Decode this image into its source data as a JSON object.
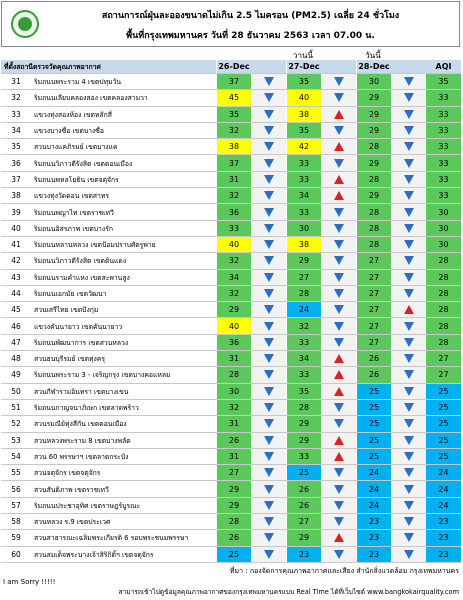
{
  "header": {
    "title": "สถานการณ์ฝุ่นละอองขนาดไม่เกิน 2.5 ไมครอน (PM2.5) เฉลี่ย 24 ชั่วโมง",
    "subtitle": "พื้นที่กรุงเทพมหานคร วันที่ 28 ธันวาคม 2563 เวลา 07.00 น.",
    "yesterday": "วานนี้",
    "today": "วันนี้"
  },
  "table": {
    "columns": [
      "ที่ตั้งสถานีตรวจวัดคุณภาพอากาศ",
      "26-Dec",
      "27-Dec",
      "28-Dec",
      "AQI"
    ],
    "value_color_scale": [
      {
        "upto": 25,
        "color": "#00b0f0"
      },
      {
        "upto": 37,
        "color": "#5cc85c"
      },
      {
        "upto": 50,
        "color": "#ffff00"
      }
    ],
    "aqi_color_scale": [
      {
        "upto": 25,
        "color": "#00b0f0"
      },
      {
        "upto": 50,
        "color": "#5cc85c"
      }
    ],
    "arrow_colors": {
      "up": "#e02020",
      "down": "#2a6fc0"
    },
    "rows": [
      {
        "no": 31,
        "station": "ริมถนนพระราม 4 เขตปทุมวัน",
        "values": [
          37,
          35,
          30
        ],
        "trend": [
          "down",
          "down",
          "down"
        ],
        "aqi": 35
      },
      {
        "no": 32,
        "station": "ริมถนนเลียบคลองสอง เขตคลองสามวา",
        "values": [
          45,
          40,
          29
        ],
        "trend": [
          "down",
          "down",
          "down"
        ],
        "aqi": 33
      },
      {
        "no": 33,
        "station": "แขวงทุ่งสองห้อง เขตหลักสี่",
        "values": [
          35,
          38,
          29
        ],
        "trend": [
          "down",
          "up",
          "down"
        ],
        "aqi": 33
      },
      {
        "no": 34,
        "station": "แขวงบางซื่อ เขตบางซื่อ",
        "values": [
          32,
          35,
          29
        ],
        "trend": [
          "down",
          "down",
          "down"
        ],
        "aqi": 33
      },
      {
        "no": 35,
        "station": "สวนบางแคภิรมย์ เขตบางแค",
        "values": [
          38,
          42,
          28
        ],
        "trend": [
          "down",
          "up",
          "down"
        ],
        "aqi": 33
      },
      {
        "no": 36,
        "station": "ริมถนนวิภาวดีรังสิต เขตดอนเมือง",
        "values": [
          37,
          33,
          29
        ],
        "trend": [
          "down",
          "down",
          "down"
        ],
        "aqi": 33
      },
      {
        "no": 37,
        "station": "ริมถนนพหลโยธิน เขตจตุจักร",
        "values": [
          31,
          33,
          28
        ],
        "trend": [
          "down",
          "up",
          "down"
        ],
        "aqi": 33
      },
      {
        "no": 38,
        "station": "แขวงทุ่งวัดดอน เขตสาทร",
        "values": [
          32,
          34,
          29
        ],
        "trend": [
          "down",
          "up",
          "down"
        ],
        "aqi": 33
      },
      {
        "no": 39,
        "station": "ริมถนนพญาไท เขตราชเทวี",
        "values": [
          36,
          33,
          28
        ],
        "trend": [
          "down",
          "down",
          "down"
        ],
        "aqi": 30
      },
      {
        "no": 40,
        "station": "ริมถนนอิสรภาพ เขตบางรัก",
        "values": [
          33,
          30,
          28
        ],
        "trend": [
          "down",
          "down",
          "down"
        ],
        "aqi": 30
      },
      {
        "no": 41,
        "station": "ริมถนนหลานหลวง เขตป้อมปราบศัตรูพ่าย",
        "values": [
          40,
          38,
          28
        ],
        "trend": [
          "down",
          "down",
          "down"
        ],
        "aqi": 30
      },
      {
        "no": 42,
        "station": "ริมถนนวิภาวดีรังสิต เขตดินแดง",
        "values": [
          32,
          29,
          27
        ],
        "trend": [
          "down",
          "down",
          "down"
        ],
        "aqi": 28
      },
      {
        "no": 43,
        "station": "ริมถนนรามคำแหง เขตสะพานสูง",
        "values": [
          34,
          27,
          27
        ],
        "trend": [
          "down",
          "down",
          "down"
        ],
        "aqi": 28
      },
      {
        "no": 44,
        "station": "ริมถนนเอกมัย เขตวัฒนา",
        "values": [
          32,
          28,
          27
        ],
        "trend": [
          "down",
          "down",
          "down"
        ],
        "aqi": 28
      },
      {
        "no": 45,
        "station": "สวนเสรีไทย เขตบึงกุ่ม",
        "values": [
          29,
          24,
          27
        ],
        "trend": [
          "down",
          "down",
          "up"
        ],
        "aqi": 28
      },
      {
        "no": 46,
        "station": "แขวงคันนายาว เขตคันนายาว",
        "values": [
          40,
          32,
          27
        ],
        "trend": [
          "down",
          "down",
          "down"
        ],
        "aqi": 28
      },
      {
        "no": 47,
        "station": "ริมถนนพัฒนาการ เขตสวนหลวง",
        "values": [
          36,
          33,
          27
        ],
        "trend": [
          "down",
          "down",
          "down"
        ],
        "aqi": 28
      },
      {
        "no": 48,
        "station": "สวนธนบุรีรมย์ เขตทุ่งครุ",
        "values": [
          31,
          34,
          26
        ],
        "trend": [
          "down",
          "up",
          "down"
        ],
        "aqi": 27
      },
      {
        "no": 49,
        "station": "ริมถนนพระราม 3 - เจริญกรุง เขตบางคอแหลม",
        "values": [
          28,
          33,
          26
        ],
        "trend": [
          "down",
          "up",
          "down"
        ],
        "aqi": 27
      },
      {
        "no": 50,
        "station": "สวนกีฬารามอินทรา เขตบางเขน",
        "values": [
          30,
          35,
          25
        ],
        "trend": [
          "down",
          "up",
          "down"
        ],
        "aqi": 25
      },
      {
        "no": 51,
        "station": "ริมถนนกาญจนาภิเษก เขตลาดพร้าว",
        "values": [
          32,
          28,
          25
        ],
        "trend": [
          "down",
          "down",
          "down"
        ],
        "aqi": 25
      },
      {
        "no": 52,
        "station": "สวนรมณีย์ทุ่งสีกัน เขตดอนเมือง",
        "values": [
          31,
          29,
          25
        ],
        "trend": [
          "down",
          "down",
          "down"
        ],
        "aqi": 25
      },
      {
        "no": 53,
        "station": "สวนหลวงพระราม 8 เขตบางพลัด",
        "values": [
          26,
          29,
          25
        ],
        "trend": [
          "down",
          "up",
          "down"
        ],
        "aqi": 25
      },
      {
        "no": 54,
        "station": "สวน 60 พรรษาฯ เขตลาดกระบัง",
        "values": [
          31,
          33,
          25
        ],
        "trend": [
          "down",
          "up",
          "down"
        ],
        "aqi": 25
      },
      {
        "no": 55,
        "station": "สวนจตุจักร เขตจตุจักร",
        "values": [
          27,
          25,
          24
        ],
        "trend": [
          "down",
          "down",
          "down"
        ],
        "aqi": 24
      },
      {
        "no": 56,
        "station": "สวนสันติภาพ เขตราชเทวี",
        "values": [
          29,
          26,
          24
        ],
        "trend": [
          "down",
          "down",
          "down"
        ],
        "aqi": 24
      },
      {
        "no": 57,
        "station": "ริมถนนประชาอุทิศ เขตราษฎร์บูรณะ",
        "values": [
          29,
          26,
          24
        ],
        "trend": [
          "down",
          "down",
          "down"
        ],
        "aqi": 24
      },
      {
        "no": 58,
        "station": "สวนหลวง ร.9 เขตประเวศ",
        "values": [
          28,
          27,
          23
        ],
        "trend": [
          "down",
          "down",
          "down"
        ],
        "aqi": 23
      },
      {
        "no": 59,
        "station": "สวนสาธารณะเฉลิมพระเกียรติ 6 รอบพระชนมพรรษา",
        "values": [
          26,
          29,
          23
        ],
        "trend": [
          "down",
          "up",
          "down"
        ],
        "aqi": 23
      },
      {
        "no": 60,
        "station": "สวนสมเด็จพระนางเจ้าสิริกิติ์ฯ เขตจตุจักร",
        "values": [
          25,
          23,
          23
        ],
        "trend": [
          "down",
          "down",
          "down"
        ],
        "aqi": 23
      }
    ]
  },
  "footer": {
    "source": "ที่มา : กองจัดการคุณภาพอากาศและเสียง สำนักสิ่งแวดล้อม กรุงเทพมหานคร",
    "website": "สามารถเข้าไปดูข้อมูลคุณภาพอากาศของกรุงเทพมหานครแบบ Real Time ได้ที่เว็บไซต์ www.bangkokairquality.com",
    "note": "I am Sorry !!!!!"
  }
}
